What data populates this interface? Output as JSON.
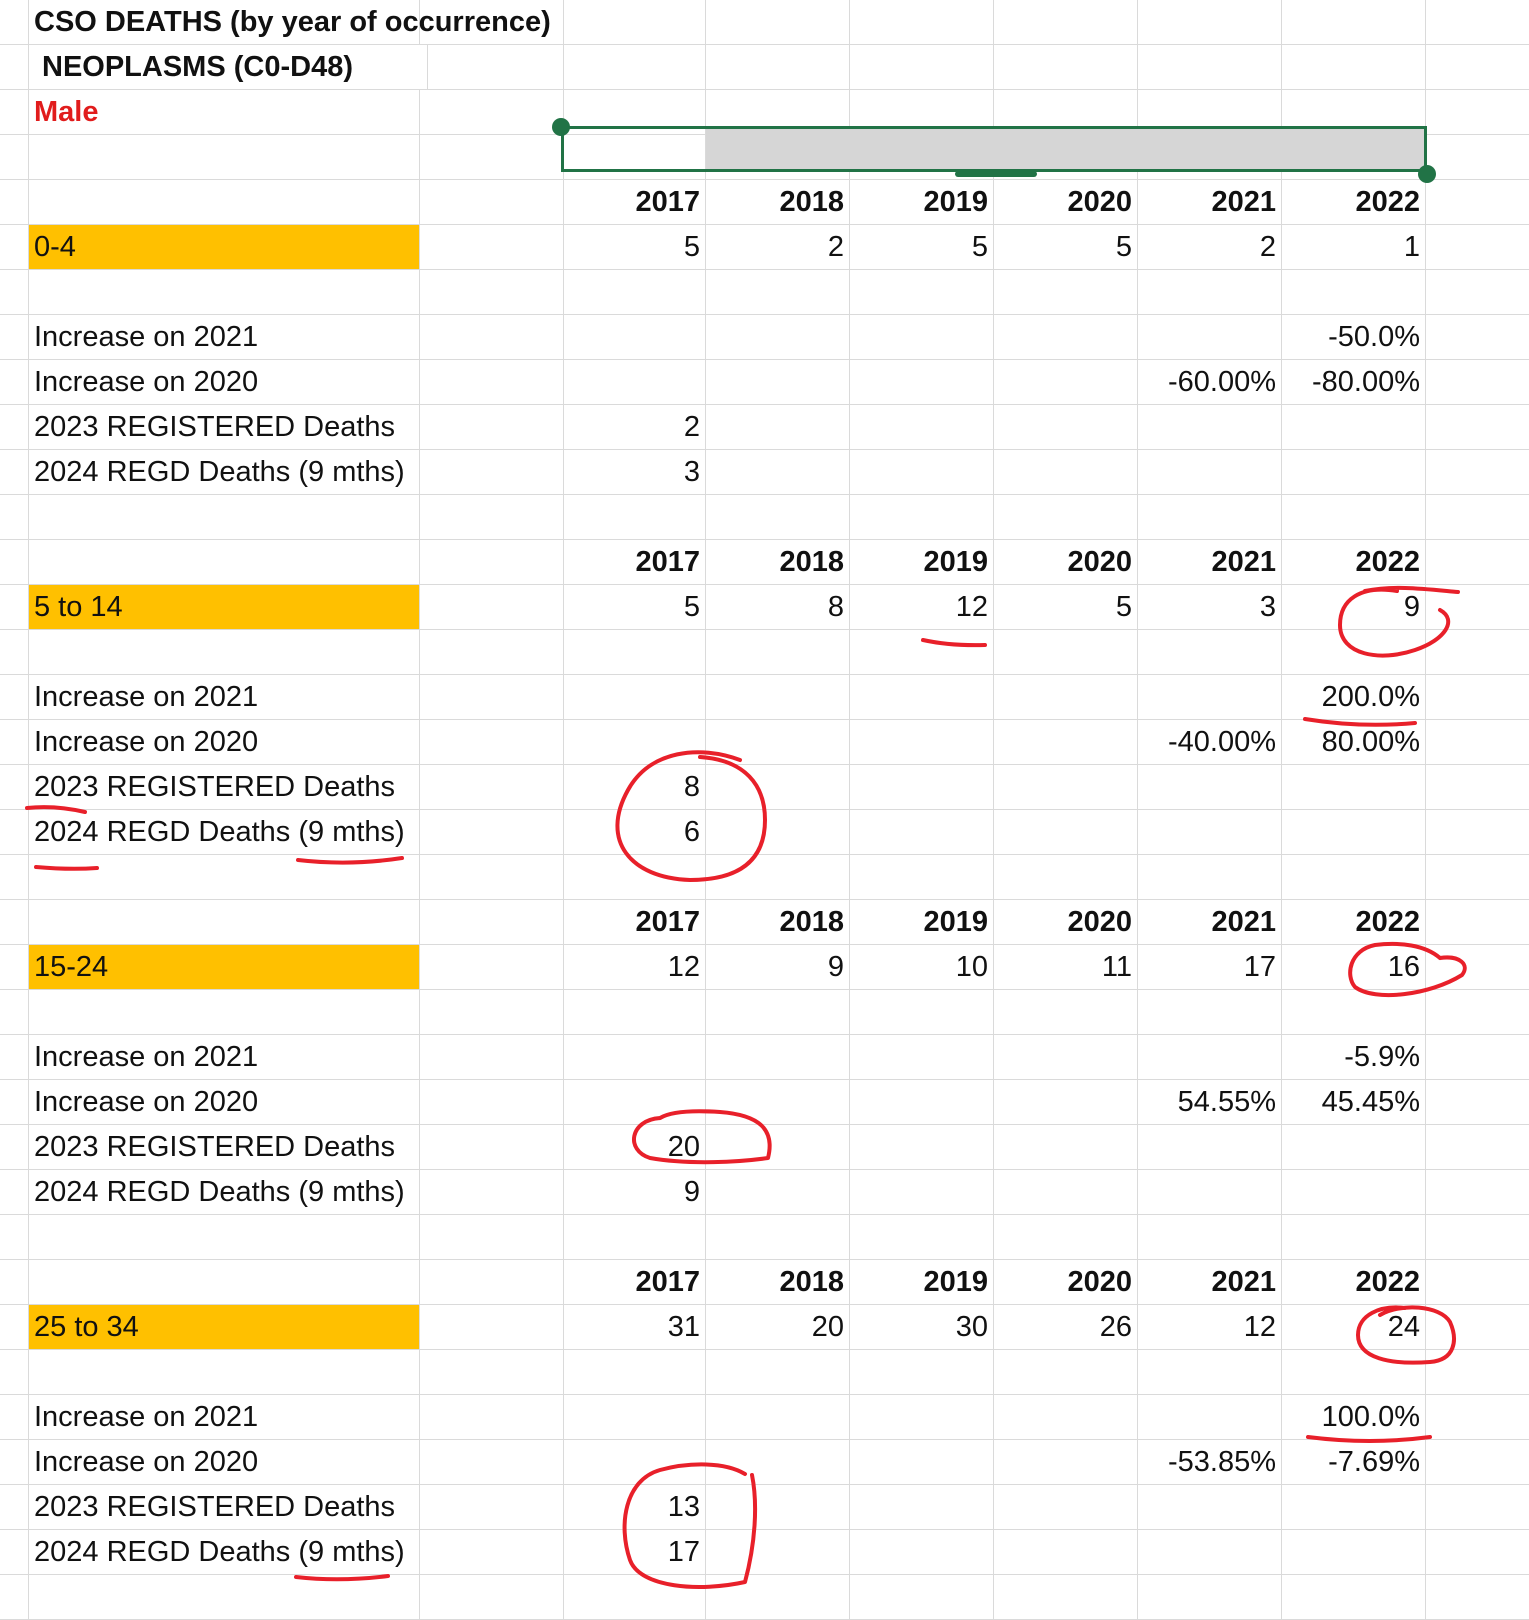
{
  "header": {
    "title": "CSO DEATHS (by year of occurrence)",
    "subtitle": "NEOPLASMS (C0-D48)",
    "sex": "Male"
  },
  "years": [
    "2017",
    "2018",
    "2019",
    "2020",
    "2021",
    "2022"
  ],
  "sections": [
    {
      "age_group": "0-4",
      "values": [
        "5",
        "2",
        "5",
        "5",
        "2",
        "1"
      ],
      "rows": [
        {
          "label": "Increase on 2021",
          "values": [
            "",
            "",
            "",
            "",
            "",
            "-50.0%"
          ]
        },
        {
          "label": "Increase on 2020",
          "values": [
            "",
            "",
            "",
            "",
            "-60.00%",
            "-80.00%"
          ]
        },
        {
          "label": "2023 REGISTERED Deaths",
          "values": [
            "2",
            "",
            "",
            "",
            "",
            ""
          ]
        },
        {
          "label": "2024 REGD Deaths (9 mths)",
          "values": [
            "3",
            "",
            "",
            "",
            "",
            ""
          ]
        }
      ]
    },
    {
      "age_group": "5 to 14",
      "values": [
        "5",
        "8",
        "12",
        "5",
        "3",
        "9"
      ],
      "rows": [
        {
          "label": "Increase on 2021",
          "values": [
            "",
            "",
            "",
            "",
            "",
            "200.0%"
          ]
        },
        {
          "label": "Increase on 2020",
          "values": [
            "",
            "",
            "",
            "",
            "-40.00%",
            "80.00%"
          ]
        },
        {
          "label": "2023 REGISTERED Deaths",
          "values": [
            "8",
            "",
            "",
            "",
            "",
            ""
          ]
        },
        {
          "label": "2024 REGD Deaths (9 mths)",
          "values": [
            "6",
            "",
            "",
            "",
            "",
            ""
          ]
        }
      ]
    },
    {
      "age_group": "15-24",
      "values": [
        "12",
        "9",
        "10",
        "11",
        "17",
        "16"
      ],
      "rows": [
        {
          "label": "Increase on 2021",
          "values": [
            "",
            "",
            "",
            "",
            "",
            "-5.9%"
          ]
        },
        {
          "label": "Increase on 2020",
          "values": [
            "",
            "",
            "",
            "",
            "54.55%",
            "45.45%"
          ]
        },
        {
          "label": "2023 REGISTERED Deaths",
          "values": [
            "20",
            "",
            "",
            "",
            "",
            ""
          ]
        },
        {
          "label": "2024 REGD Deaths (9 mths)",
          "values": [
            "9",
            "",
            "",
            "",
            "",
            ""
          ]
        }
      ]
    },
    {
      "age_group": "25 to 34",
      "values": [
        "31",
        "20",
        "30",
        "26",
        "12",
        "24"
      ],
      "rows": [
        {
          "label": "Increase on 2021",
          "values": [
            "",
            "",
            "",
            "",
            "",
            "100.0%"
          ]
        },
        {
          "label": "Increase on 2020",
          "values": [
            "",
            "",
            "",
            "",
            "-53.85%",
            "-7.69%"
          ]
        },
        {
          "label": "2023 REGISTERED Deaths",
          "values": [
            "13",
            "",
            "",
            "",
            "",
            ""
          ]
        },
        {
          "label": "2024 REGD Deaths (9 mths)",
          "values": [
            "17",
            "",
            "",
            "",
            "",
            ""
          ]
        }
      ]
    }
  ],
  "colors": {
    "age_highlight": "#ffc000",
    "title_red": "#e11c1c",
    "annotation_red": "#e8202a",
    "selection_green": "#217346",
    "gridline": "#dadada"
  }
}
